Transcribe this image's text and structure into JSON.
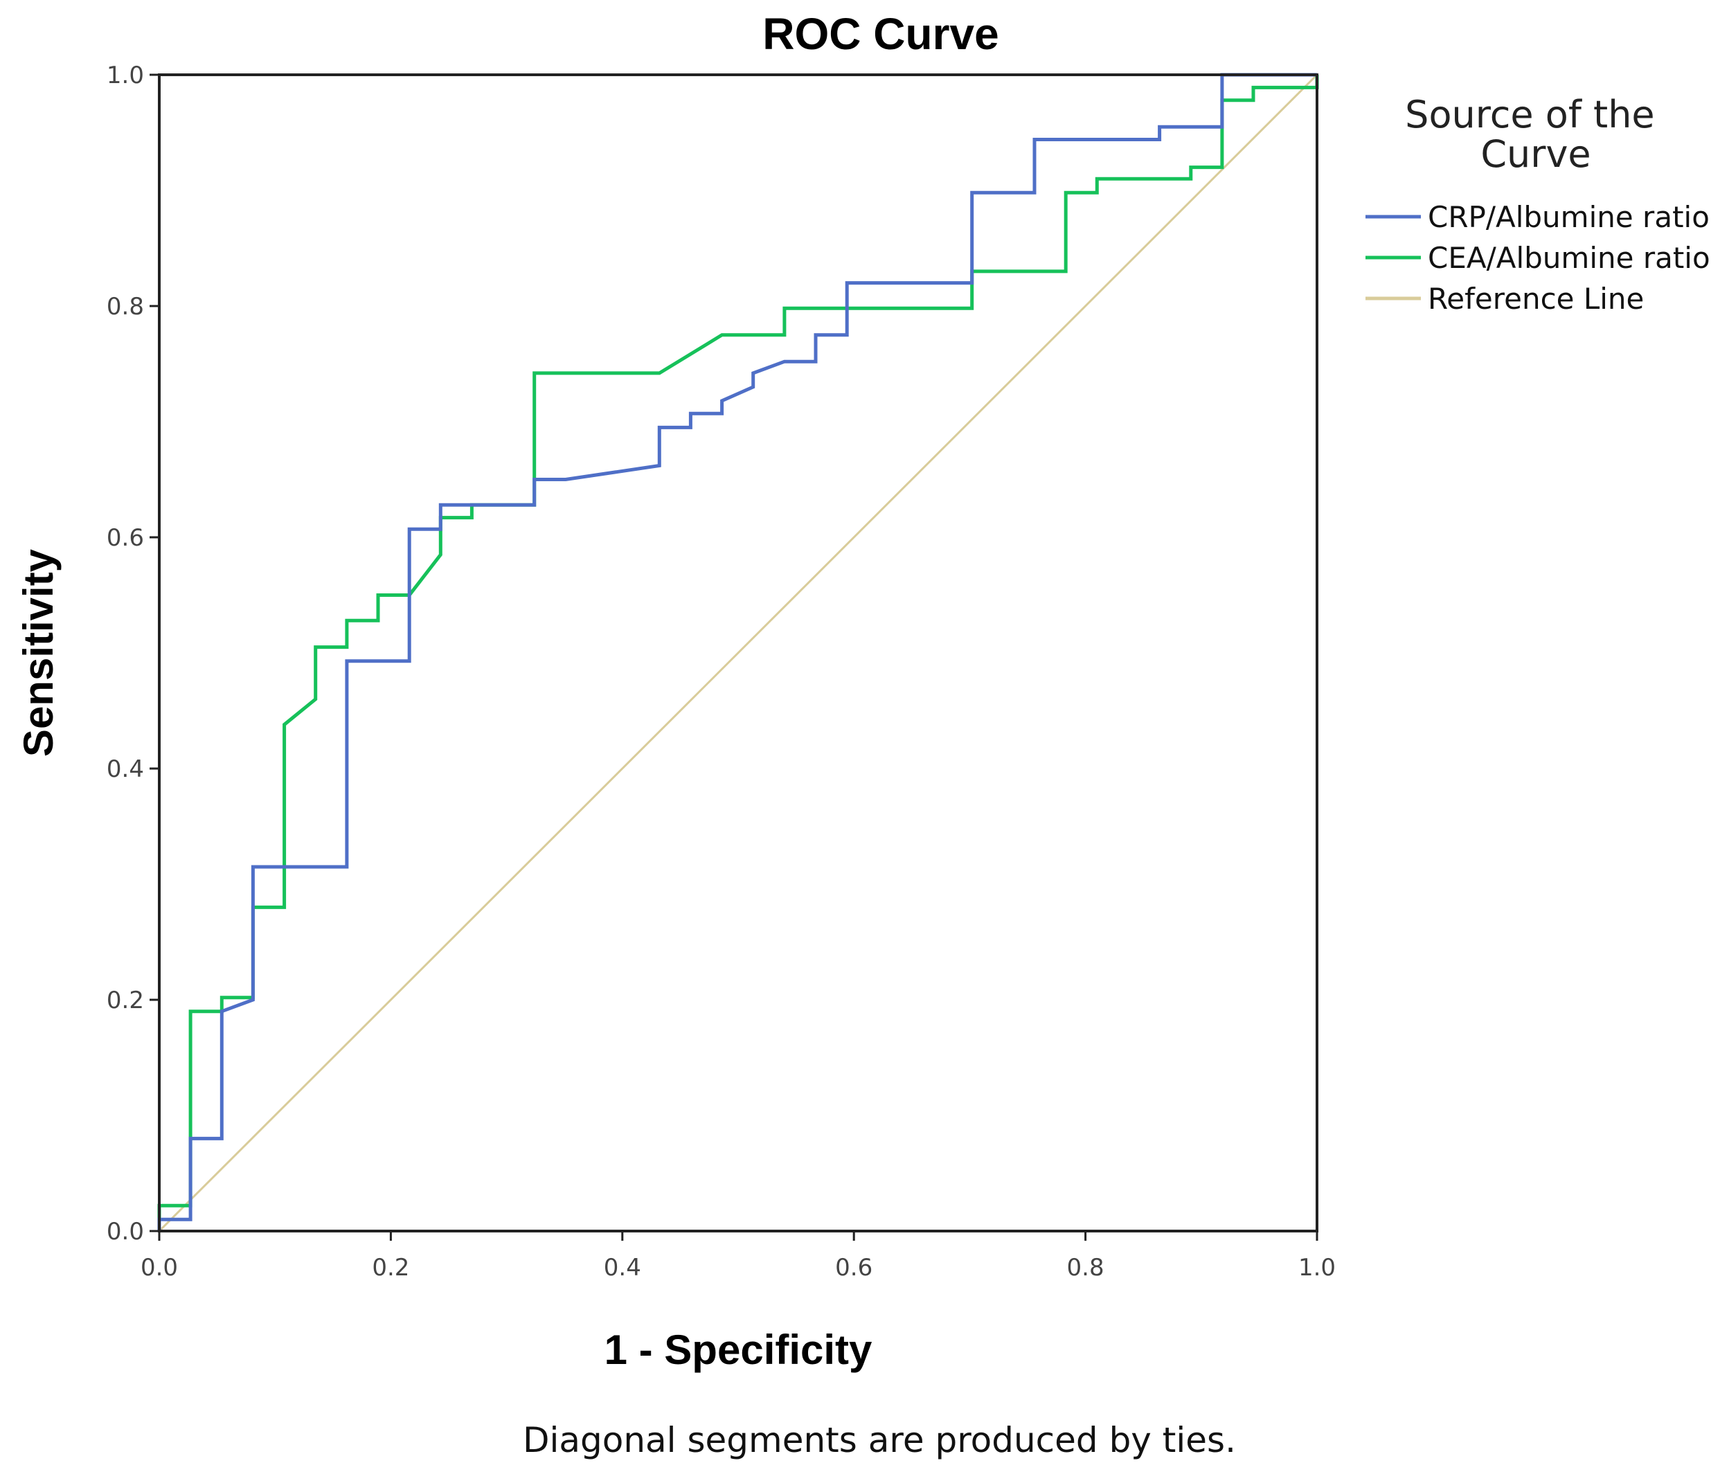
{
  "chart_data": {
    "type": "line",
    "title": "ROC Curve",
    "xlabel": "1 - Specificity",
    "ylabel": "Sensitivity",
    "xlim": [
      0,
      1
    ],
    "ylim": [
      0,
      1
    ],
    "x_ticks": [
      "0.0",
      "0.2",
      "0.4",
      "0.6",
      "0.8",
      "1.0"
    ],
    "y_ticks": [
      "0.0",
      "0.2",
      "0.4",
      "0.6",
      "0.8",
      "1.0"
    ],
    "grid": false,
    "legend_title": "Source of the Curve",
    "legend_placement": "right",
    "footnote": "Diagonal segments are produced by ties.",
    "series": [
      {
        "name": "CRP/Albumine ratio",
        "color": "#4f6fc7",
        "points": [
          [
            0.0,
            0.0
          ],
          [
            0.0,
            0.01
          ],
          [
            0.027,
            0.01
          ],
          [
            0.027,
            0.08
          ],
          [
            0.054,
            0.08
          ],
          [
            0.054,
            0.19
          ],
          [
            0.081,
            0.2
          ],
          [
            0.081,
            0.315
          ],
          [
            0.162,
            0.315
          ],
          [
            0.162,
            0.493
          ],
          [
            0.216,
            0.493
          ],
          [
            0.216,
            0.607
          ],
          [
            0.243,
            0.607
          ],
          [
            0.243,
            0.628
          ],
          [
            0.324,
            0.628
          ],
          [
            0.324,
            0.65
          ],
          [
            0.351,
            0.65
          ],
          [
            0.432,
            0.662
          ],
          [
            0.432,
            0.695
          ],
          [
            0.459,
            0.695
          ],
          [
            0.459,
            0.707
          ],
          [
            0.486,
            0.707
          ],
          [
            0.486,
            0.718
          ],
          [
            0.513,
            0.73
          ],
          [
            0.513,
            0.742
          ],
          [
            0.54,
            0.752
          ],
          [
            0.567,
            0.752
          ],
          [
            0.567,
            0.775
          ],
          [
            0.594,
            0.775
          ],
          [
            0.594,
            0.82
          ],
          [
            0.702,
            0.82
          ],
          [
            0.702,
            0.898
          ],
          [
            0.756,
            0.898
          ],
          [
            0.756,
            0.944
          ],
          [
            0.864,
            0.944
          ],
          [
            0.864,
            0.955
          ],
          [
            0.918,
            0.955
          ],
          [
            0.918,
            1.0
          ],
          [
            1.0,
            1.0
          ]
        ]
      },
      {
        "name": "CEA/Albumine ratio",
        "color": "#16c15a",
        "points": [
          [
            0.0,
            0.0
          ],
          [
            0.0,
            0.022
          ],
          [
            0.027,
            0.022
          ],
          [
            0.027,
            0.19
          ],
          [
            0.054,
            0.19
          ],
          [
            0.054,
            0.202
          ],
          [
            0.081,
            0.202
          ],
          [
            0.081,
            0.28
          ],
          [
            0.108,
            0.28
          ],
          [
            0.108,
            0.438
          ],
          [
            0.135,
            0.46
          ],
          [
            0.135,
            0.505
          ],
          [
            0.162,
            0.505
          ],
          [
            0.162,
            0.528
          ],
          [
            0.189,
            0.528
          ],
          [
            0.189,
            0.55
          ],
          [
            0.216,
            0.55
          ],
          [
            0.243,
            0.585
          ],
          [
            0.243,
            0.617
          ],
          [
            0.27,
            0.617
          ],
          [
            0.27,
            0.628
          ],
          [
            0.324,
            0.628
          ],
          [
            0.324,
            0.742
          ],
          [
            0.432,
            0.742
          ],
          [
            0.486,
            0.775
          ],
          [
            0.54,
            0.775
          ],
          [
            0.54,
            0.798
          ],
          [
            0.702,
            0.798
          ],
          [
            0.702,
            0.83
          ],
          [
            0.783,
            0.83
          ],
          [
            0.783,
            0.898
          ],
          [
            0.81,
            0.898
          ],
          [
            0.81,
            0.91
          ],
          [
            0.891,
            0.91
          ],
          [
            0.891,
            0.92
          ],
          [
            0.918,
            0.92
          ],
          [
            0.918,
            0.978
          ],
          [
            0.945,
            0.978
          ],
          [
            0.945,
            0.989
          ],
          [
            1.0,
            0.989
          ],
          [
            1.0,
            1.0
          ]
        ]
      },
      {
        "name": "Reference Line",
        "color": "#d9cc9a",
        "points": [
          [
            0.0,
            0.0
          ],
          [
            1.0,
            1.0
          ]
        ]
      }
    ]
  }
}
